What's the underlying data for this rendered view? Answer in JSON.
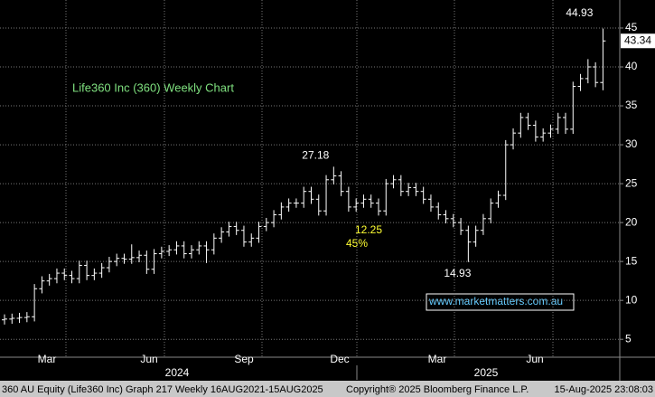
{
  "chart_data": {
    "type": "ohlc",
    "title": "Life360 Inc (360) Weekly Chart",
    "color": "#ffffff",
    "open": [
      7.5,
      7.6,
      7.7,
      7.8,
      7.9,
      11.5,
      12.5,
      12.8,
      13.5,
      13.2,
      12.8,
      14.5,
      13.2,
      13.5,
      14.2,
      15,
      15.4,
      15.3,
      15.5,
      15.8,
      14,
      16,
      16.3,
      16.5,
      17,
      16,
      16.5,
      17,
      16.5,
      18,
      18.8,
      19.5,
      19,
      17.5,
      18,
      19.5,
      20,
      21,
      22,
      22.5,
      22.5,
      24,
      23,
      21.5,
      25.5,
      26,
      24,
      22,
      22.5,
      23,
      22.5,
      21.5,
      25,
      25.5,
      24,
      24.5,
      24,
      23,
      22,
      21,
      20.5,
      20,
      19,
      17.5,
      19,
      20.5,
      22.5,
      23.5,
      30,
      31.5,
      33.5,
      32.5,
      31,
      31.5,
      32,
      33.5,
      32,
      37.5,
      38.5,
      40,
      38
    ],
    "high": [
      8.2,
      8.3,
      8.4,
      8.5,
      12.1,
      13.1,
      13.4,
      14.1,
      14.1,
      13.8,
      15.1,
      15.1,
      14.1,
      14.8,
      15.6,
      16,
      16,
      17.2,
      16.4,
      16.4,
      16.6,
      16.9,
      17.1,
      17.6,
      17.6,
      17.1,
      17.6,
      17.6,
      18.6,
      19.4,
      20.1,
      20.1,
      19.6,
      18.6,
      20.1,
      20.6,
      21.6,
      22.6,
      23.1,
      23.1,
      24.6,
      24.6,
      23.6,
      26.1,
      27.18,
      26.6,
      24.6,
      23.1,
      23.6,
      23.6,
      23.1,
      25.6,
      26.1,
      26.1,
      25.1,
      25.1,
      24.6,
      23.6,
      22.6,
      21.6,
      21.1,
      20.6,
      19.6,
      19.6,
      21.1,
      23.1,
      24.1,
      30.6,
      32.1,
      34.1,
      34.1,
      33.1,
      32.1,
      32.6,
      34.1,
      34.1,
      38.1,
      39.1,
      41,
      40.6,
      44.93
    ],
    "low": [
      6.9,
      7.0,
      7.1,
      7.2,
      7.3,
      10.9,
      11.9,
      12.2,
      12.6,
      12.2,
      12.2,
      12.6,
      12.6,
      12.9,
      13.6,
      14.4,
      14.7,
      14.7,
      14.9,
      13.4,
      13.4,
      15.4,
      15.7,
      15.9,
      15.4,
      15.4,
      15.9,
      14.8,
      15.9,
      17.4,
      18.2,
      18.4,
      16.9,
      16.9,
      17.4,
      18.9,
      19.4,
      20.4,
      21.4,
      21.9,
      21.9,
      22.4,
      20.9,
      20.9,
      24.9,
      23.4,
      21.4,
      21.4,
      21.9,
      21.9,
      20.9,
      20.9,
      24.4,
      23.4,
      23.4,
      23.4,
      22.4,
      21.4,
      20.4,
      19.9,
      19.4,
      18.4,
      14.93,
      16.9,
      18.4,
      19.9,
      21.9,
      22.9,
      29.4,
      30.9,
      31.9,
      30.4,
      30.4,
      30.9,
      31.4,
      31.4,
      31.4,
      36.9,
      37.9,
      37.4,
      37
    ],
    "close": [
      7.6,
      7.7,
      7.8,
      7.9,
      11.5,
      12.5,
      12.8,
      13.5,
      13.2,
      12.8,
      14.5,
      13.2,
      13.5,
      14.2,
      15,
      15.4,
      15.3,
      15.5,
      15.8,
      14,
      16,
      16.3,
      16.5,
      17,
      16,
      16.5,
      17,
      16.5,
      18,
      18.8,
      19.5,
      19,
      17.5,
      18,
      19.5,
      20,
      21,
      22,
      22.5,
      22.5,
      24,
      23,
      21.5,
      25.5,
      26,
      24,
      22,
      22.5,
      23,
      22.5,
      21.5,
      25,
      25.5,
      24,
      24.5,
      24,
      23,
      22,
      21,
      20.5,
      20,
      19,
      17.5,
      19,
      20.5,
      22.5,
      23.5,
      30,
      31.5,
      33.5,
      32.5,
      31,
      31.5,
      32,
      33.5,
      32,
      37.5,
      38.5,
      40,
      38,
      43.34
    ],
    "ylim": [
      2.7,
      48.6
    ],
    "yticks": [
      5,
      10,
      15,
      20,
      25,
      30,
      35,
      40,
      45
    ],
    "grid": true,
    "x_month_labels": [
      "Mar",
      "Jun",
      "Sep",
      "Dec",
      "Mar",
      "Jun"
    ],
    "x_year_labels": [
      "2024",
      "2025"
    ],
    "annotations": [
      "12.25",
      "45%"
    ],
    "watermark": "www.marketmatters.com.au",
    "footer": [
      "360 AU Equity (Life360 Inc) Graph 217  Weekly 16AUG2021-15AUG2025",
      "Copyright® 2025 Bloomberg Finance L.P.",
      "15-Aug-2025 23:08:03"
    ]
  }
}
